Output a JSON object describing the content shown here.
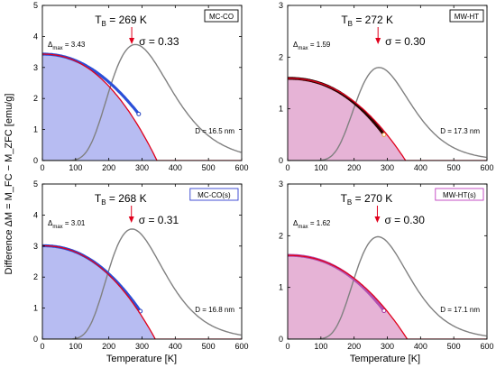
{
  "figure": {
    "ylabel": "Difference  ΔM = M_FC − M_ZFC  [emu/g]",
    "xlabel_bottom_left": "Temperature [K]",
    "xlabel_bottom_right": "Temperature [K]"
  },
  "chart_data": [
    {
      "type": "area",
      "sample_label": "MC-CO",
      "tb_text": "269 K",
      "sigma_text": "σ = 0.33",
      "delta_max_text": "3.43",
      "d_text": "D = 16.5 nm",
      "tb_value": 269,
      "xlim": [
        0,
        600
      ],
      "ylim": [
        0,
        5
      ],
      "xticks": [
        0,
        100,
        200,
        300,
        400,
        500,
        600
      ],
      "yticks": [
        0,
        1,
        2,
        3,
        4,
        5
      ],
      "delta_max": 3.43,
      "sigma": 0.33,
      "fit_zero_T": 345,
      "data_end_T": 290,
      "data_end_value": 1.5,
      "lognormal_peak": 3.74,
      "lognormal_peak_T": 280,
      "fill_color": "#aab0f0",
      "data_color": "#2a4fd8",
      "edge_color": "#2040c0",
      "tag_border": "#000000"
    },
    {
      "type": "area",
      "sample_label": "MW-HT",
      "tb_text": "272 K",
      "sigma_text": "σ = 0.30",
      "delta_max_text": "1.59",
      "d_text": "D = 17.3 nm",
      "tb_value": 272,
      "xlim": [
        0,
        600
      ],
      "ylim": [
        0,
        3
      ],
      "xticks": [
        0,
        100,
        200,
        300,
        400,
        500,
        600
      ],
      "yticks": [
        0,
        1,
        2,
        3
      ],
      "delta_max": 1.59,
      "sigma": 0.3,
      "fit_zero_T": 355,
      "data_end_T": 290,
      "data_end_value": 0.5,
      "lognormal_peak": 1.8,
      "lognormal_peak_T": 275,
      "fill_color": "#e2a6cf",
      "data_color": "#2b0000",
      "edge_color": "#e6a040",
      "tag_border": "#000000"
    },
    {
      "type": "area",
      "sample_label": "MC-CO(s)",
      "tb_text": "268 K",
      "sigma_text": "σ = 0.31",
      "delta_max_text": "3.01",
      "d_text": "D = 16.8 nm",
      "tb_value": 268,
      "xlim": [
        0,
        600
      ],
      "ylim": [
        0,
        5
      ],
      "xticks": [
        0,
        100,
        200,
        300,
        400,
        500,
        600
      ],
      "yticks": [
        0,
        1,
        2,
        3,
        4,
        5
      ],
      "delta_max": 3.01,
      "sigma": 0.31,
      "fit_zero_T": 340,
      "data_end_T": 295,
      "data_end_value": 0.9,
      "lognormal_peak": 3.55,
      "lognormal_peak_T": 270,
      "fill_color": "#aab0f0",
      "data_color": "#2a4fd8",
      "edge_color": "#2040c0",
      "tag_border": "#3040d0"
    },
    {
      "type": "area",
      "sample_label": "MW-HT(s)",
      "tb_text": "270 K",
      "sigma_text": "σ = 0.30",
      "delta_max_text": "1.62",
      "d_text": "D = 17.1 nm",
      "tb_value": 270,
      "xlim": [
        0,
        600
      ],
      "ylim": [
        0,
        3
      ],
      "xticks": [
        0,
        100,
        200,
        300,
        400,
        500,
        600
      ],
      "yticks": [
        0,
        1,
        2,
        3
      ],
      "delta_max": 1.62,
      "sigma": 0.3,
      "fit_zero_T": 360,
      "data_end_T": 290,
      "data_end_value": 0.55,
      "lognormal_peak": 1.98,
      "lognormal_peak_T": 272,
      "fill_color": "#e2a6cf",
      "data_color": "#b050b0",
      "edge_color": "#a030a0",
      "tag_border": "#c040c0"
    }
  ]
}
